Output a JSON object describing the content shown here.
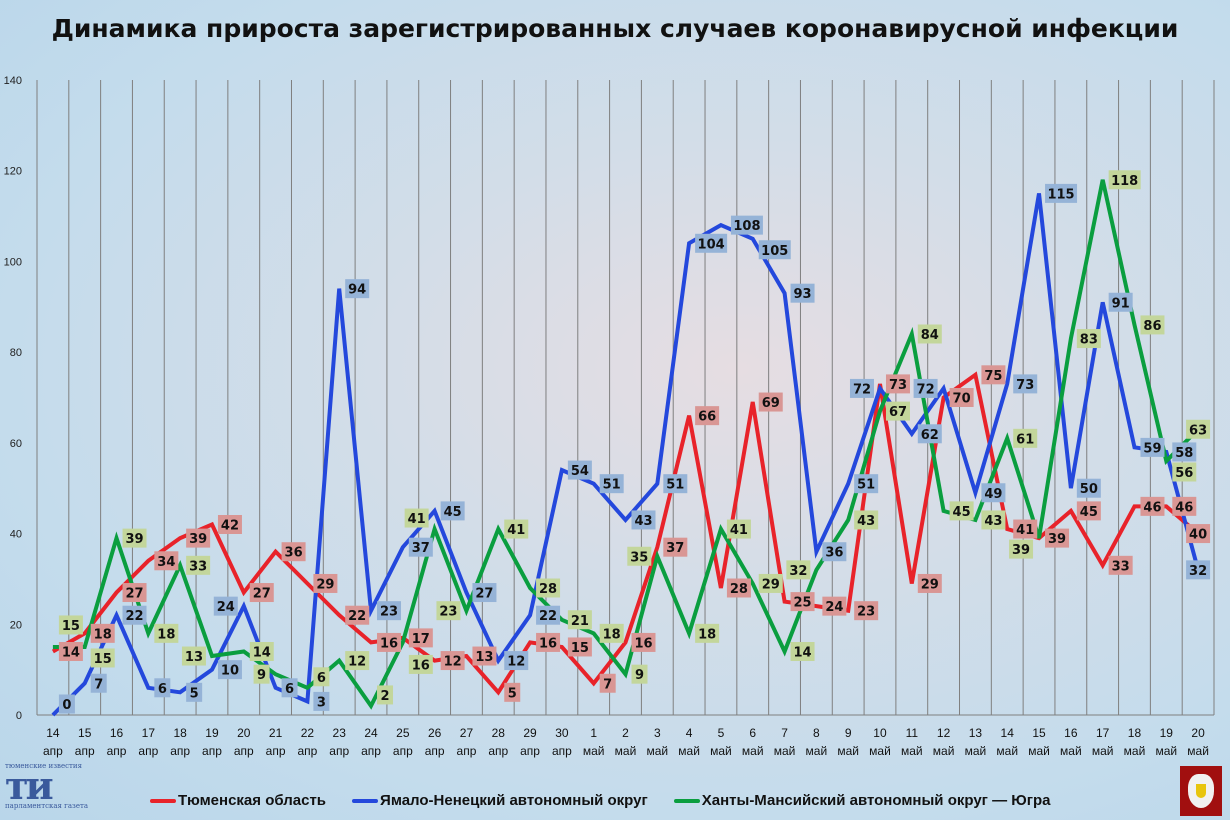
{
  "title": "Динамика прироста зарегистрированных случаев коронавирусной инфекции",
  "chart_data": {
    "type": "line",
    "title": "Динамика прироста зарегистрированных случаев коронавирусной инфекции",
    "xlabel": "",
    "ylabel": "",
    "ylim": [
      0,
      140
    ],
    "yticks": [
      0,
      20,
      40,
      60,
      80,
      100,
      120,
      140
    ],
    "grid": "vertical",
    "legend": "bottom",
    "categories": [
      [
        "14",
        "апр"
      ],
      [
        "15",
        "апр"
      ],
      [
        "16",
        "апр"
      ],
      [
        "17",
        "апр"
      ],
      [
        "18",
        "апр"
      ],
      [
        "19",
        "апр"
      ],
      [
        "20",
        "апр"
      ],
      [
        "21",
        "апр"
      ],
      [
        "22",
        "апр"
      ],
      [
        "23",
        "апр"
      ],
      [
        "24",
        "апр"
      ],
      [
        "25",
        "апр"
      ],
      [
        "26",
        "апр"
      ],
      [
        "27",
        "апр"
      ],
      [
        "28",
        "апр"
      ],
      [
        "29",
        "апр"
      ],
      [
        "30",
        "апр"
      ],
      [
        "1",
        "май"
      ],
      [
        "2",
        "май"
      ],
      [
        "3",
        "май"
      ],
      [
        "4",
        "май"
      ],
      [
        "5",
        "май"
      ],
      [
        "6",
        "май"
      ],
      [
        "7",
        "май"
      ],
      [
        "8",
        "май"
      ],
      [
        "9",
        "май"
      ],
      [
        "10",
        "май"
      ],
      [
        "11",
        "май"
      ],
      [
        "12",
        "май"
      ],
      [
        "13",
        "май"
      ],
      [
        "14",
        "май"
      ],
      [
        "15",
        "май"
      ],
      [
        "16",
        "май"
      ],
      [
        "17",
        "май"
      ],
      [
        "18",
        "май"
      ],
      [
        "19",
        "май"
      ],
      [
        "20",
        "май"
      ]
    ],
    "series": [
      {
        "name": "Тюменская область",
        "color": "#e8232a",
        "label_color": "#d99694",
        "values": [
          14,
          18,
          27,
          34,
          39,
          42,
          27,
          36,
          29,
          22,
          16,
          17,
          12,
          13,
          5,
          16,
          15,
          7,
          16,
          37,
          66,
          28,
          69,
          25,
          24,
          23,
          73,
          29,
          70,
          75,
          41,
          39,
          45,
          33,
          46,
          46,
          40
        ]
      },
      {
        "name": "Ямало-Ненецкий автономный округ",
        "color": "#2448dc",
        "label_color": "#95b3d7",
        "values": [
          0,
          7,
          22,
          6,
          5,
          10,
          24,
          6,
          3,
          94,
          23,
          37,
          45,
          27,
          12,
          22,
          54,
          51,
          43,
          51,
          104,
          108,
          105,
          93,
          36,
          51,
          72,
          62,
          72,
          49,
          73,
          115,
          50,
          91,
          59,
          58,
          32
        ]
      },
      {
        "name": "Ханты-Мансийский автономный округ — Югра",
        "color": "#0a9e3f",
        "label_color": "#c3d69b",
        "values": [
          15,
          15,
          39,
          18,
          33,
          13,
          14,
          9,
          6,
          12,
          2,
          16,
          41,
          23,
          41,
          28,
          21,
          18,
          9,
          35,
          18,
          41,
          29,
          14,
          32,
          43,
          67,
          84,
          45,
          43,
          61,
          39,
          83,
          118,
          86,
          56,
          63
        ]
      }
    ]
  },
  "logos": {
    "left": [
      "тюменские известия",
      "ти",
      "парламентская газета"
    ]
  }
}
